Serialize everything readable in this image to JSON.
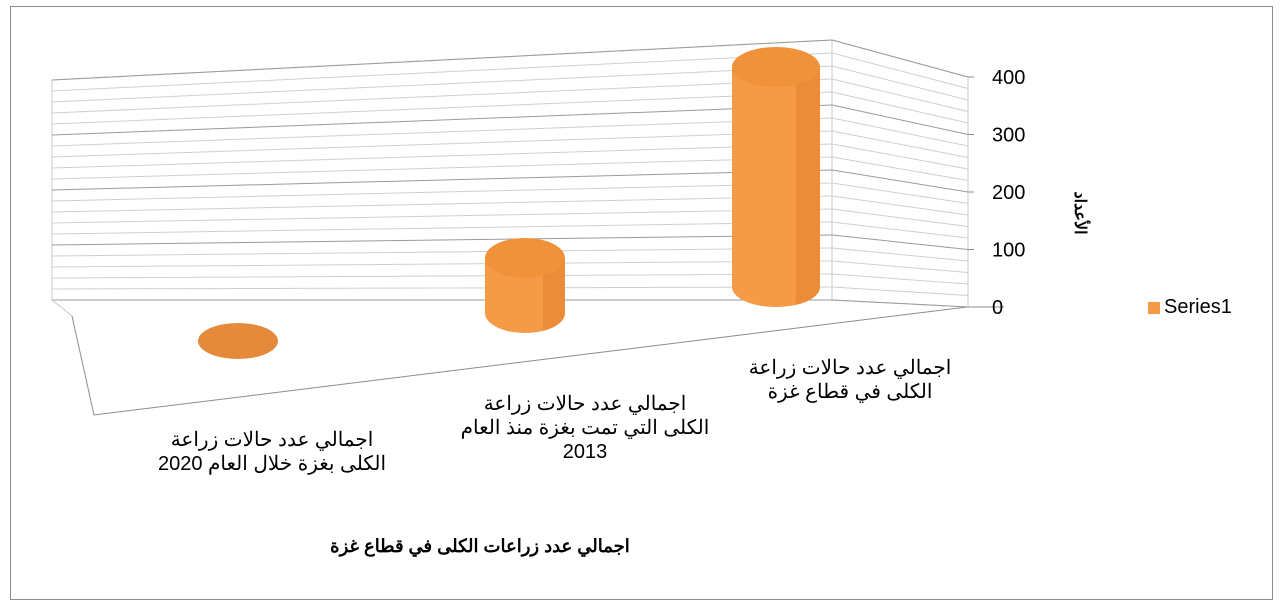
{
  "chart_data": {
    "type": "bar",
    "style": "3d-cylinder",
    "categories": [
      "اجمالي عدد حالات زراعة الكلى بغزة خلال العام 2020",
      "اجمالي عدد حالات زراعة الكلى التي تمت بغزة منذ العام 2013",
      "اجمالي عدد حالات زراعة الكلى في قطاع غزة"
    ],
    "category_lines": [
      [
        "اجمالي عدد حالات زراعة",
        "الكلى بغزة خلال العام 2020"
      ],
      [
        "اجمالي عدد حالات زراعة",
        "الكلى التي تمت بغزة منذ العام",
        "2013"
      ],
      [
        "اجمالي عدد حالات زراعة",
        "الكلى في قطاع غزة"
      ]
    ],
    "series": [
      {
        "name": "Series1",
        "values": [
          0,
          100,
          400
        ],
        "color": "#f59a46"
      }
    ],
    "xlabel": "اجمالي عدد زراعات الكلى في قطاع غزة",
    "ylabel": "الأعداد",
    "ylim": [
      0,
      400
    ],
    "yticks": [
      "0",
      "100",
      "200",
      "300",
      "400"
    ],
    "grid": true,
    "legend_position": "right"
  }
}
